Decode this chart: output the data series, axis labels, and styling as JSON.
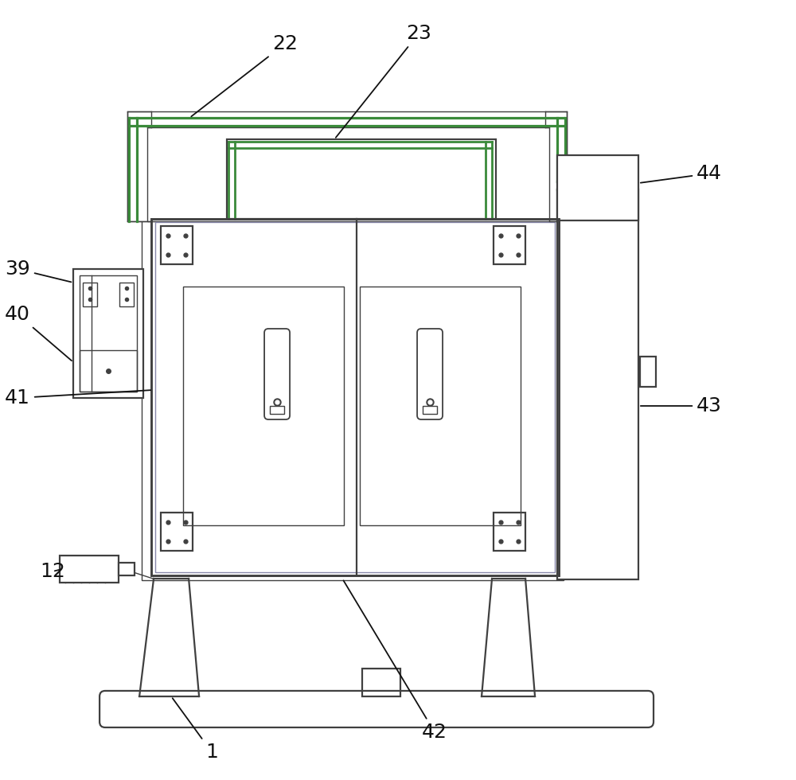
{
  "bg_color": "#ffffff",
  "lc": "#404040",
  "gc": "#3a8a3a",
  "lw": 1.6,
  "tlw": 1.0,
  "glw": 2.3,
  "label_fs": 18,
  "figsize": [
    10.0,
    9.8
  ],
  "dpi": 100
}
